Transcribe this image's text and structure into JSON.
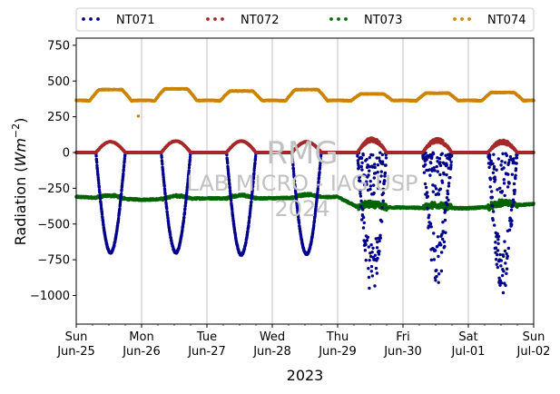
{
  "chart_data": {
    "type": "scatter",
    "title": "",
    "xlabel": "2023",
    "ylabel_prefix": "Radiation (",
    "ylabel_unit": "Wm",
    "ylabel_exp": "−2",
    "ylabel_suffix": ")",
    "ylim": [
      -1200,
      800
    ],
    "yticks": [
      750,
      500,
      250,
      0,
      -250,
      -500,
      -750,
      -1000
    ],
    "ytick_labels": [
      "750",
      "500",
      "250",
      "0",
      "−250",
      "−500",
      "−750",
      "−1000"
    ],
    "xlim_days": [
      0,
      7
    ],
    "x_start": "2023-06-25",
    "xticks": [
      {
        "day": "Sun",
        "date": "Jun-25"
      },
      {
        "day": "Mon",
        "date": "Jun-26"
      },
      {
        "day": "Tue",
        "date": "Jun-27"
      },
      {
        "day": "Wed",
        "date": "Jun-28"
      },
      {
        "day": "Thu",
        "date": "Jun-29"
      },
      {
        "day": "Fri",
        "date": "Jun-30"
      },
      {
        "day": "Sat",
        "date": "Jul-01"
      },
      {
        "day": "Sun",
        "date": "Jul-02"
      }
    ],
    "grid": "x-major",
    "legend_position": "top-outside",
    "watermark": [
      "RMG",
      "LAB MICRO - IAG USP",
      "2024"
    ],
    "series": [
      {
        "name": "NT071",
        "color": "#00008b",
        "style": "dotted",
        "night_value": 0,
        "day_minimum": [
          -700,
          -700,
          -715,
          -710,
          -820,
          -760,
          -810
        ]
      },
      {
        "name": "NT072",
        "color": "#a52a2a",
        "style": "dotted",
        "night_value": 0,
        "day_peak": [
          75,
          80,
          80,
          75,
          90,
          85,
          75
        ]
      },
      {
        "name": "NT073",
        "color": "#006400",
        "style": "dotted",
        "baseline": [
          [
            0,
            -310
          ],
          [
            1,
            -330
          ],
          [
            2,
            -320
          ],
          [
            3,
            -320
          ],
          [
            4,
            -310
          ],
          [
            4.3,
            -380
          ],
          [
            5,
            -385
          ],
          [
            6,
            -390
          ],
          [
            7,
            -360
          ]
        ]
      },
      {
        "name": "NT074",
        "color": "#cc8400",
        "style": "dotted",
        "night_value": 360,
        "day_peak": [
          440,
          445,
          430,
          440,
          410,
          415,
          420
        ],
        "outlier": [
          0.95,
          255
        ]
      }
    ]
  }
}
